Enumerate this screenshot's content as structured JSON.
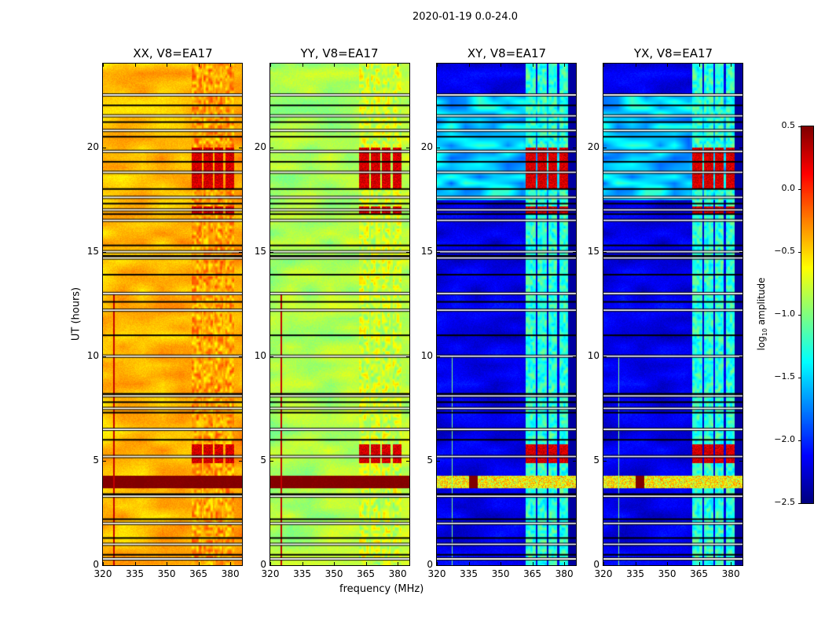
{
  "chart_data": {
    "type": "heatmap",
    "title": "2020-01-19 0.0-24.0",
    "xlabel": "frequency (MHz)",
    "ylabel": "UT (hours)",
    "xlim": [
      320,
      385.5
    ],
    "ylim": [
      0,
      24
    ],
    "xticks": [
      320,
      335,
      350,
      365,
      380
    ],
    "yticks": [
      0,
      5,
      10,
      15,
      20
    ],
    "colormap": "jet",
    "colorbar": {
      "label_main": "log",
      "label_sub": "10",
      "label_rest": " amplitude",
      "range": [
        -2.5,
        0.5
      ],
      "ticks": [
        "0.5",
        "0.0",
        "−0.5",
        "−1.0",
        "−1.5",
        "−2.0",
        "−2.5"
      ],
      "tick_values": [
        0.5,
        0.0,
        -0.5,
        -1.0,
        -1.5,
        -2.0,
        -2.5
      ],
      "placement": "right"
    },
    "panels": [
      {
        "title": "XX, V8=EA17",
        "base": -0.45,
        "band_level": 0.05,
        "event_level": 0.5,
        "patch_level": -0.45
      },
      {
        "title": "YY, V8=EA17",
        "base": -0.9,
        "band_level": -0.35,
        "event_level": 0.5,
        "patch_level": -0.9
      },
      {
        "title": "XY, V8=EA17",
        "base": -2.2,
        "band_level": -0.85,
        "event_level": -0.6,
        "patch_level": -1.5
      },
      {
        "title": "YX, V8=EA17",
        "base": -2.2,
        "band_level": -0.85,
        "event_level": -0.6,
        "patch_level": -1.5
      }
    ],
    "rfi_bands_mhz": [
      [
        361.5,
        366.3
      ],
      [
        367.0,
        371.5
      ],
      [
        372.2,
        376.3
      ],
      [
        377.4,
        381.5
      ]
    ],
    "strong_rfi_hours": [
      [
        18.0,
        20.0
      ],
      [
        4.9,
        5.8
      ],
      [
        16.8,
        17.2
      ]
    ],
    "broadband_event_hours": [
      3.7,
      4.3
    ],
    "flagged_hours": [
      0.3,
      0.5,
      1.0,
      1.3,
      2.0,
      2.2,
      3.3,
      3.4,
      5.2,
      6.0,
      6.5,
      7.3,
      7.5,
      7.8,
      8.1,
      8.2,
      10.0,
      11.0,
      12.2,
      12.6,
      13.0,
      13.9,
      14.7,
      14.8,
      15.0,
      15.3,
      16.5,
      16.8,
      17.0,
      17.3,
      17.6,
      18.0,
      18.8,
      19.3,
      19.8,
      20.5,
      20.8,
      21.2,
      21.5,
      22.0,
      22.5
    ]
  }
}
